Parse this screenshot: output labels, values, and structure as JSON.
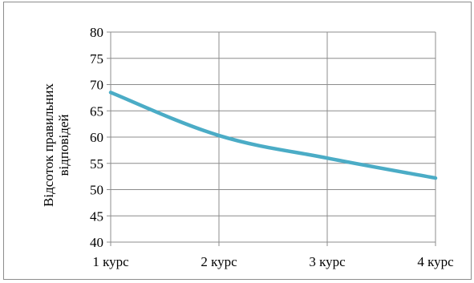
{
  "chart_data": {
    "type": "line",
    "categories": [
      "1 курс",
      "2 курс",
      "3 курс",
      "4 курс"
    ],
    "series": [
      {
        "values": [
          68.5,
          60.3,
          56.0,
          52.2
        ],
        "color": "#4bacc6"
      }
    ],
    "ylabel_lines": [
      "Відсоток правильних",
      "відповідей"
    ],
    "ylim": [
      40,
      80
    ],
    "yticks": [
      40,
      45,
      50,
      55,
      60,
      65,
      70,
      75,
      80
    ],
    "grid": true,
    "legend": "none"
  }
}
